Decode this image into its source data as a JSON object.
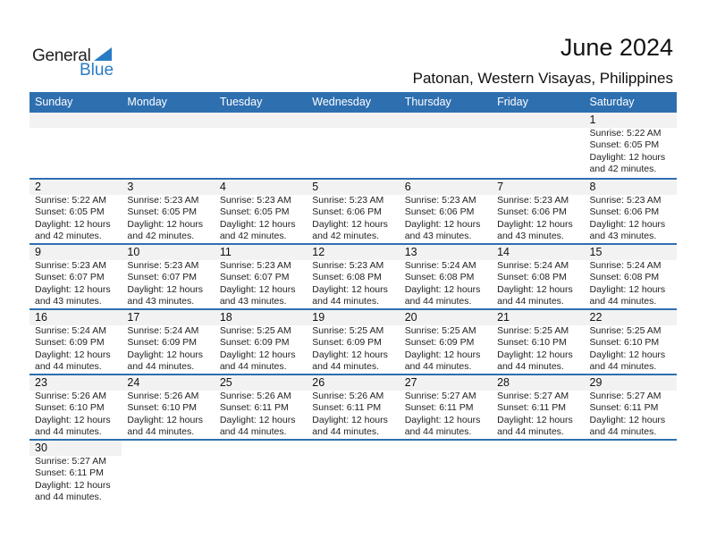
{
  "logo": {
    "line1": "General",
    "line2": "Blue"
  },
  "header": {
    "title": "June 2024",
    "location": "Patonan, Western Visayas, Philippines"
  },
  "colors": {
    "accent": "#2e6fb0",
    "band": "#f2f2f2"
  },
  "weekdays": [
    "Sunday",
    "Monday",
    "Tuesday",
    "Wednesday",
    "Thursday",
    "Friday",
    "Saturday"
  ],
  "weeks": [
    [
      null,
      null,
      null,
      null,
      null,
      null,
      {
        "day": "1",
        "sunrise": "Sunrise: 5:22 AM",
        "sunset": "Sunset: 6:05 PM",
        "daylight": "Daylight: 12 hours",
        "minutes": "and 42 minutes."
      }
    ],
    [
      {
        "day": "2",
        "sunrise": "Sunrise: 5:22 AM",
        "sunset": "Sunset: 6:05 PM",
        "daylight": "Daylight: 12 hours",
        "minutes": "and 42 minutes."
      },
      {
        "day": "3",
        "sunrise": "Sunrise: 5:23 AM",
        "sunset": "Sunset: 6:05 PM",
        "daylight": "Daylight: 12 hours",
        "minutes": "and 42 minutes."
      },
      {
        "day": "4",
        "sunrise": "Sunrise: 5:23 AM",
        "sunset": "Sunset: 6:05 PM",
        "daylight": "Daylight: 12 hours",
        "minutes": "and 42 minutes."
      },
      {
        "day": "5",
        "sunrise": "Sunrise: 5:23 AM",
        "sunset": "Sunset: 6:06 PM",
        "daylight": "Daylight: 12 hours",
        "minutes": "and 42 minutes."
      },
      {
        "day": "6",
        "sunrise": "Sunrise: 5:23 AM",
        "sunset": "Sunset: 6:06 PM",
        "daylight": "Daylight: 12 hours",
        "minutes": "and 43 minutes."
      },
      {
        "day": "7",
        "sunrise": "Sunrise: 5:23 AM",
        "sunset": "Sunset: 6:06 PM",
        "daylight": "Daylight: 12 hours",
        "minutes": "and 43 minutes."
      },
      {
        "day": "8",
        "sunrise": "Sunrise: 5:23 AM",
        "sunset": "Sunset: 6:06 PM",
        "daylight": "Daylight: 12 hours",
        "minutes": "and 43 minutes."
      }
    ],
    [
      {
        "day": "9",
        "sunrise": "Sunrise: 5:23 AM",
        "sunset": "Sunset: 6:07 PM",
        "daylight": "Daylight: 12 hours",
        "minutes": "and 43 minutes."
      },
      {
        "day": "10",
        "sunrise": "Sunrise: 5:23 AM",
        "sunset": "Sunset: 6:07 PM",
        "daylight": "Daylight: 12 hours",
        "minutes": "and 43 minutes."
      },
      {
        "day": "11",
        "sunrise": "Sunrise: 5:23 AM",
        "sunset": "Sunset: 6:07 PM",
        "daylight": "Daylight: 12 hours",
        "minutes": "and 43 minutes."
      },
      {
        "day": "12",
        "sunrise": "Sunrise: 5:23 AM",
        "sunset": "Sunset: 6:08 PM",
        "daylight": "Daylight: 12 hours",
        "minutes": "and 44 minutes."
      },
      {
        "day": "13",
        "sunrise": "Sunrise: 5:24 AM",
        "sunset": "Sunset: 6:08 PM",
        "daylight": "Daylight: 12 hours",
        "minutes": "and 44 minutes."
      },
      {
        "day": "14",
        "sunrise": "Sunrise: 5:24 AM",
        "sunset": "Sunset: 6:08 PM",
        "daylight": "Daylight: 12 hours",
        "minutes": "and 44 minutes."
      },
      {
        "day": "15",
        "sunrise": "Sunrise: 5:24 AM",
        "sunset": "Sunset: 6:08 PM",
        "daylight": "Daylight: 12 hours",
        "minutes": "and 44 minutes."
      }
    ],
    [
      {
        "day": "16",
        "sunrise": "Sunrise: 5:24 AM",
        "sunset": "Sunset: 6:09 PM",
        "daylight": "Daylight: 12 hours",
        "minutes": "and 44 minutes."
      },
      {
        "day": "17",
        "sunrise": "Sunrise: 5:24 AM",
        "sunset": "Sunset: 6:09 PM",
        "daylight": "Daylight: 12 hours",
        "minutes": "and 44 minutes."
      },
      {
        "day": "18",
        "sunrise": "Sunrise: 5:25 AM",
        "sunset": "Sunset: 6:09 PM",
        "daylight": "Daylight: 12 hours",
        "minutes": "and 44 minutes."
      },
      {
        "day": "19",
        "sunrise": "Sunrise: 5:25 AM",
        "sunset": "Sunset: 6:09 PM",
        "daylight": "Daylight: 12 hours",
        "minutes": "and 44 minutes."
      },
      {
        "day": "20",
        "sunrise": "Sunrise: 5:25 AM",
        "sunset": "Sunset: 6:09 PM",
        "daylight": "Daylight: 12 hours",
        "minutes": "and 44 minutes."
      },
      {
        "day": "21",
        "sunrise": "Sunrise: 5:25 AM",
        "sunset": "Sunset: 6:10 PM",
        "daylight": "Daylight: 12 hours",
        "minutes": "and 44 minutes."
      },
      {
        "day": "22",
        "sunrise": "Sunrise: 5:25 AM",
        "sunset": "Sunset: 6:10 PM",
        "daylight": "Daylight: 12 hours",
        "minutes": "and 44 minutes."
      }
    ],
    [
      {
        "day": "23",
        "sunrise": "Sunrise: 5:26 AM",
        "sunset": "Sunset: 6:10 PM",
        "daylight": "Daylight: 12 hours",
        "minutes": "and 44 minutes."
      },
      {
        "day": "24",
        "sunrise": "Sunrise: 5:26 AM",
        "sunset": "Sunset: 6:10 PM",
        "daylight": "Daylight: 12 hours",
        "minutes": "and 44 minutes."
      },
      {
        "day": "25",
        "sunrise": "Sunrise: 5:26 AM",
        "sunset": "Sunset: 6:11 PM",
        "daylight": "Daylight: 12 hours",
        "minutes": "and 44 minutes."
      },
      {
        "day": "26",
        "sunrise": "Sunrise: 5:26 AM",
        "sunset": "Sunset: 6:11 PM",
        "daylight": "Daylight: 12 hours",
        "minutes": "and 44 minutes."
      },
      {
        "day": "27",
        "sunrise": "Sunrise: 5:27 AM",
        "sunset": "Sunset: 6:11 PM",
        "daylight": "Daylight: 12 hours",
        "minutes": "and 44 minutes."
      },
      {
        "day": "28",
        "sunrise": "Sunrise: 5:27 AM",
        "sunset": "Sunset: 6:11 PM",
        "daylight": "Daylight: 12 hours",
        "minutes": "and 44 minutes."
      },
      {
        "day": "29",
        "sunrise": "Sunrise: 5:27 AM",
        "sunset": "Sunset: 6:11 PM",
        "daylight": "Daylight: 12 hours",
        "minutes": "and 44 minutes."
      }
    ],
    [
      {
        "day": "30",
        "sunrise": "Sunrise: 5:27 AM",
        "sunset": "Sunset: 6:11 PM",
        "daylight": "Daylight: 12 hours",
        "minutes": "and 44 minutes."
      },
      null,
      null,
      null,
      null,
      null,
      null
    ]
  ]
}
